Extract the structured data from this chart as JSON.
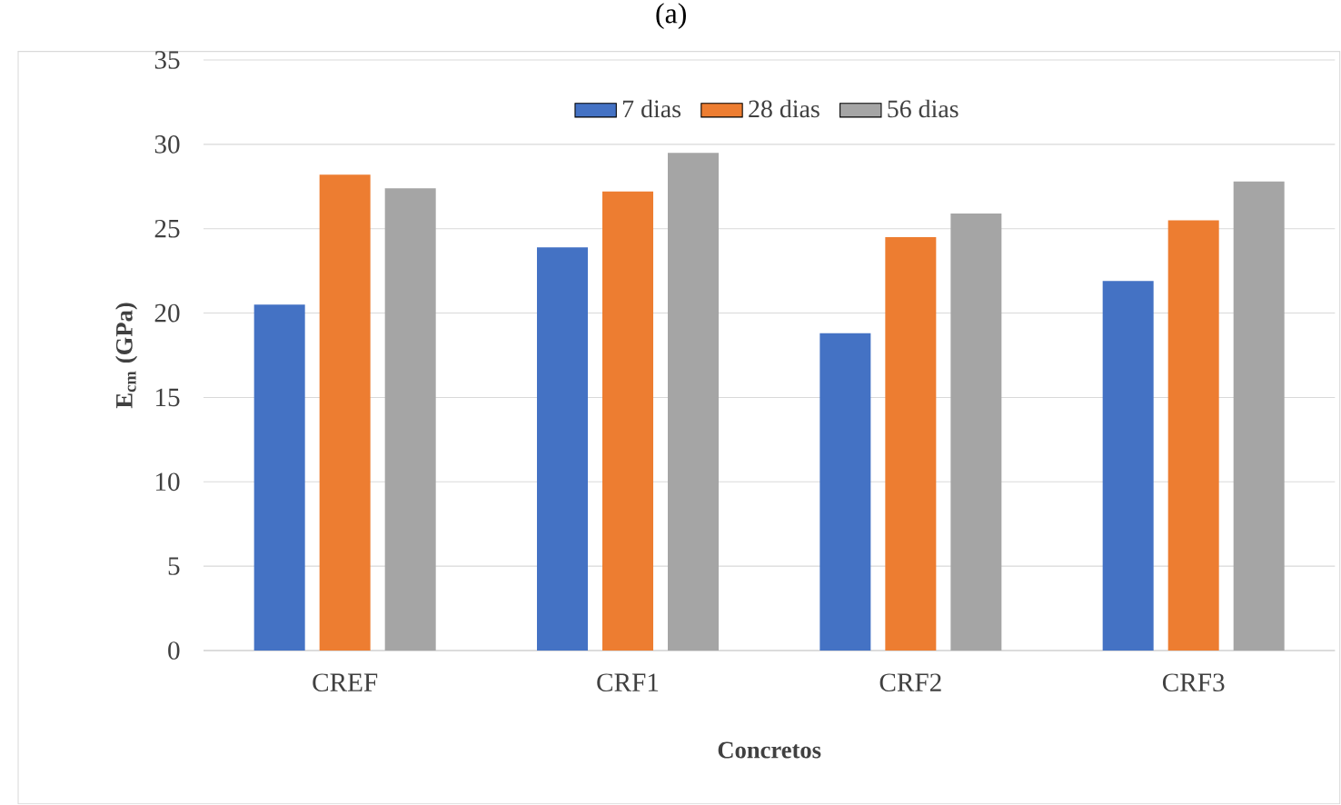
{
  "chart_data": {
    "type": "bar",
    "title": "(a)",
    "xlabel": "Concretos",
    "ylabel": "E$_{cm}$ (GPa)",
    "categories": [
      "CREF",
      "CRF1",
      "CRF2",
      "CRF3"
    ],
    "series": [
      {
        "name": "7 dias",
        "color": "#4472c4",
        "values": [
          20.5,
          23.9,
          18.8,
          21.9
        ]
      },
      {
        "name": "28 dias",
        "color": "#ed7d31",
        "values": [
          28.2,
          27.2,
          24.5,
          25.5
        ]
      },
      {
        "name": "56 dias",
        "color": "#a5a5a5",
        "values": [
          27.4,
          29.5,
          25.9,
          27.8
        ]
      }
    ],
    "ylim": [
      0,
      35
    ],
    "yticks": [
      0,
      5,
      10,
      15,
      20,
      25,
      30,
      35
    ],
    "grid": "y",
    "legend": "top"
  }
}
